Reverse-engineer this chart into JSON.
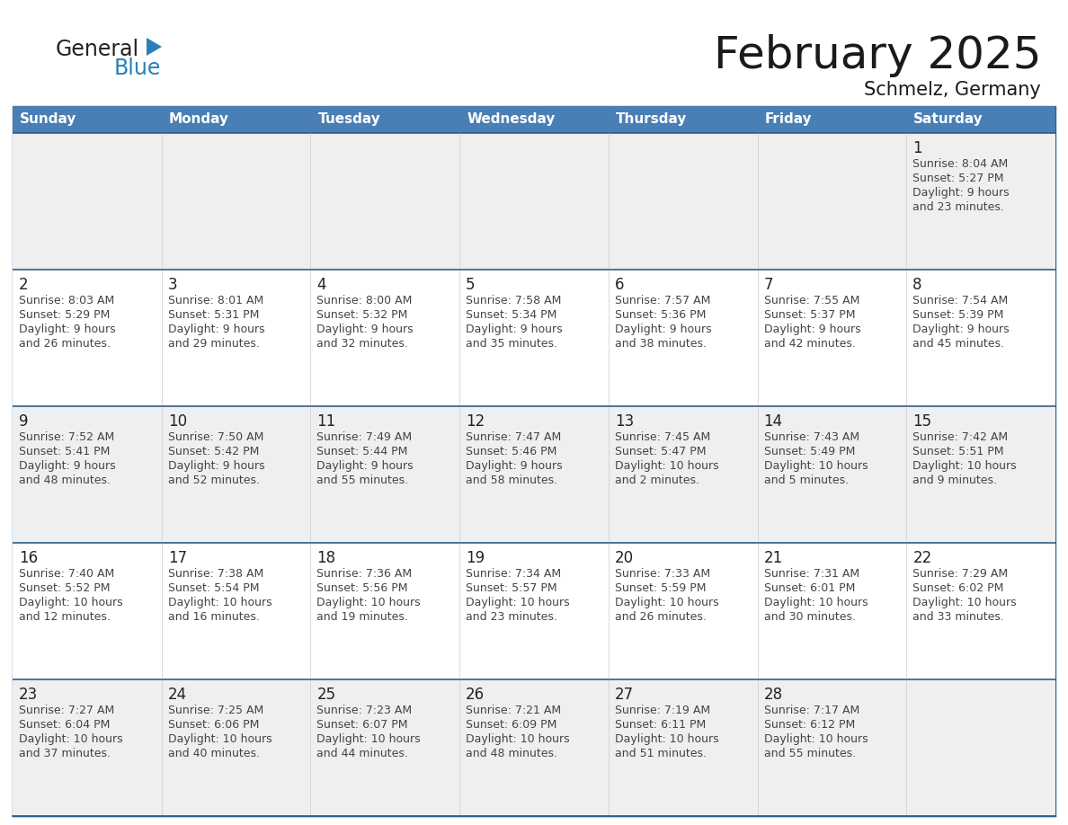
{
  "title": "February 2025",
  "subtitle": "Schmelz, Germany",
  "days_of_week": [
    "Sunday",
    "Monday",
    "Tuesday",
    "Wednesday",
    "Thursday",
    "Friday",
    "Saturday"
  ],
  "header_bg": "#4a7fb5",
  "header_text": "#ffffff",
  "row_bg_odd": "#efefef",
  "row_bg_even": "#ffffff",
  "row_separator": "#2c5f8a",
  "outer_border": "#2c5f8a",
  "day_num_color": "#222222",
  "text_color": "#444444",
  "title_color": "#1a1a1a",
  "logo_general_color": "#222222",
  "logo_blue_color": "#2980b9",
  "calendar_data": [
    [
      null,
      null,
      null,
      null,
      null,
      null,
      {
        "day": 1,
        "sunrise": "8:04 AM",
        "sunset": "5:27 PM",
        "daylight": "9 hours",
        "daylight2": "and 23 minutes."
      }
    ],
    [
      {
        "day": 2,
        "sunrise": "8:03 AM",
        "sunset": "5:29 PM",
        "daylight": "9 hours",
        "daylight2": "and 26 minutes."
      },
      {
        "day": 3,
        "sunrise": "8:01 AM",
        "sunset": "5:31 PM",
        "daylight": "9 hours",
        "daylight2": "and 29 minutes."
      },
      {
        "day": 4,
        "sunrise": "8:00 AM",
        "sunset": "5:32 PM",
        "daylight": "9 hours",
        "daylight2": "and 32 minutes."
      },
      {
        "day": 5,
        "sunrise": "7:58 AM",
        "sunset": "5:34 PM",
        "daylight": "9 hours",
        "daylight2": "and 35 minutes."
      },
      {
        "day": 6,
        "sunrise": "7:57 AM",
        "sunset": "5:36 PM",
        "daylight": "9 hours",
        "daylight2": "and 38 minutes."
      },
      {
        "day": 7,
        "sunrise": "7:55 AM",
        "sunset": "5:37 PM",
        "daylight": "9 hours",
        "daylight2": "and 42 minutes."
      },
      {
        "day": 8,
        "sunrise": "7:54 AM",
        "sunset": "5:39 PM",
        "daylight": "9 hours",
        "daylight2": "and 45 minutes."
      }
    ],
    [
      {
        "day": 9,
        "sunrise": "7:52 AM",
        "sunset": "5:41 PM",
        "daylight": "9 hours",
        "daylight2": "and 48 minutes."
      },
      {
        "day": 10,
        "sunrise": "7:50 AM",
        "sunset": "5:42 PM",
        "daylight": "9 hours",
        "daylight2": "and 52 minutes."
      },
      {
        "day": 11,
        "sunrise": "7:49 AM",
        "sunset": "5:44 PM",
        "daylight": "9 hours",
        "daylight2": "and 55 minutes."
      },
      {
        "day": 12,
        "sunrise": "7:47 AM",
        "sunset": "5:46 PM",
        "daylight": "9 hours",
        "daylight2": "and 58 minutes."
      },
      {
        "day": 13,
        "sunrise": "7:45 AM",
        "sunset": "5:47 PM",
        "daylight": "10 hours",
        "daylight2": "and 2 minutes."
      },
      {
        "day": 14,
        "sunrise": "7:43 AM",
        "sunset": "5:49 PM",
        "daylight": "10 hours",
        "daylight2": "and 5 minutes."
      },
      {
        "day": 15,
        "sunrise": "7:42 AM",
        "sunset": "5:51 PM",
        "daylight": "10 hours",
        "daylight2": "and 9 minutes."
      }
    ],
    [
      {
        "day": 16,
        "sunrise": "7:40 AM",
        "sunset": "5:52 PM",
        "daylight": "10 hours",
        "daylight2": "and 12 minutes."
      },
      {
        "day": 17,
        "sunrise": "7:38 AM",
        "sunset": "5:54 PM",
        "daylight": "10 hours",
        "daylight2": "and 16 minutes."
      },
      {
        "day": 18,
        "sunrise": "7:36 AM",
        "sunset": "5:56 PM",
        "daylight": "10 hours",
        "daylight2": "and 19 minutes."
      },
      {
        "day": 19,
        "sunrise": "7:34 AM",
        "sunset": "5:57 PM",
        "daylight": "10 hours",
        "daylight2": "and 23 minutes."
      },
      {
        "day": 20,
        "sunrise": "7:33 AM",
        "sunset": "5:59 PM",
        "daylight": "10 hours",
        "daylight2": "and 26 minutes."
      },
      {
        "day": 21,
        "sunrise": "7:31 AM",
        "sunset": "6:01 PM",
        "daylight": "10 hours",
        "daylight2": "and 30 minutes."
      },
      {
        "day": 22,
        "sunrise": "7:29 AM",
        "sunset": "6:02 PM",
        "daylight": "10 hours",
        "daylight2": "and 33 minutes."
      }
    ],
    [
      {
        "day": 23,
        "sunrise": "7:27 AM",
        "sunset": "6:04 PM",
        "daylight": "10 hours",
        "daylight2": "and 37 minutes."
      },
      {
        "day": 24,
        "sunrise": "7:25 AM",
        "sunset": "6:06 PM",
        "daylight": "10 hours",
        "daylight2": "and 40 minutes."
      },
      {
        "day": 25,
        "sunrise": "7:23 AM",
        "sunset": "6:07 PM",
        "daylight": "10 hours",
        "daylight2": "and 44 minutes."
      },
      {
        "day": 26,
        "sunrise": "7:21 AM",
        "sunset": "6:09 PM",
        "daylight": "10 hours",
        "daylight2": "and 48 minutes."
      },
      {
        "day": 27,
        "sunrise": "7:19 AM",
        "sunset": "6:11 PM",
        "daylight": "10 hours",
        "daylight2": "and 51 minutes."
      },
      {
        "day": 28,
        "sunrise": "7:17 AM",
        "sunset": "6:12 PM",
        "daylight": "10 hours",
        "daylight2": "and 55 minutes."
      },
      null
    ]
  ]
}
